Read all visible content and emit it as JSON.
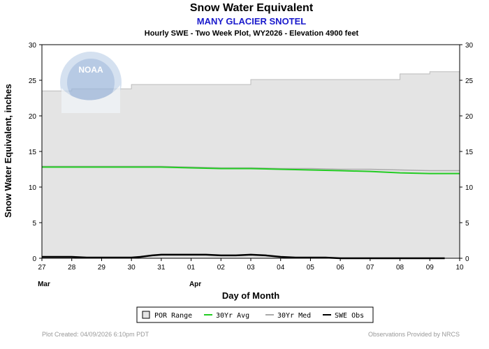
{
  "colors": {
    "por_fill": "#e4e4e4",
    "por_edge": "#bbbbbb",
    "avg": "#22cc22",
    "median": "#aaaaaa",
    "obs": "#000000",
    "subtitle": "#1a1acc"
  },
  "logo": {
    "text": "NOAA"
  },
  "chart_data": {
    "type": "line",
    "title": "Snow Water Equivalent",
    "subtitle": "MANY GLACIER SNOTEL",
    "subtitle2": "Hourly SWE - Two Week Plot, WY2026 -  Elevation 4900 feet",
    "xlabel": "Day of Month",
    "ylabel": "Snow Water Equivalent, inches",
    "ylim": [
      0,
      30
    ],
    "yticks": [
      0,
      5,
      10,
      15,
      20,
      25,
      30
    ],
    "xlim": [
      0,
      14
    ],
    "xtick_labels": [
      "27",
      "28",
      "29",
      "30",
      "31",
      "01",
      "02",
      "03",
      "04",
      "05",
      "06",
      "07",
      "08",
      "09",
      "10"
    ],
    "month_labels": [
      {
        "day": 0,
        "label": "Mar"
      },
      {
        "day": 5,
        "label": "Apr"
      }
    ],
    "series": [
      {
        "name": "POR Range",
        "kind": "area",
        "x": [
          0,
          1,
          1,
          3,
          3,
          7,
          7,
          12,
          12,
          13,
          13,
          14
        ],
        "upper": [
          23.5,
          23.5,
          23.8,
          23.8,
          24.4,
          24.4,
          25.1,
          25.1,
          25.9,
          25.9,
          26.2,
          26.2
        ],
        "lower": [
          0,
          0,
          0,
          0,
          0,
          0,
          0,
          0,
          0,
          0,
          0,
          0
        ]
      },
      {
        "name": "30Yr Avg",
        "kind": "line",
        "x": [
          0,
          2,
          4,
          5,
          6,
          7,
          8,
          9,
          10,
          11,
          12,
          13,
          14
        ],
        "values": [
          12.8,
          12.8,
          12.8,
          12.7,
          12.6,
          12.6,
          12.5,
          12.4,
          12.3,
          12.2,
          12.0,
          11.9,
          11.9
        ]
      },
      {
        "name": "30Yr Med",
        "kind": "line",
        "x": [
          0,
          2,
          4,
          5,
          6,
          7,
          8,
          9,
          10,
          11,
          12,
          13,
          14
        ],
        "values": [
          12.9,
          12.9,
          12.9,
          12.8,
          12.7,
          12.7,
          12.6,
          12.6,
          12.5,
          12.5,
          12.4,
          12.3,
          12.3
        ]
      },
      {
        "name": "SWE Obs",
        "kind": "line",
        "x": [
          0,
          0.5,
          1,
          1.5,
          2,
          2.5,
          3,
          3.3,
          3.7,
          4,
          4.5,
          5,
          5.5,
          6,
          6.5,
          7,
          7.5,
          8,
          8.5,
          9,
          9.5,
          10,
          11,
          12,
          13,
          13.5
        ],
        "values": [
          0.2,
          0.2,
          0.2,
          0.1,
          0.1,
          0.1,
          0.1,
          0.2,
          0.4,
          0.5,
          0.5,
          0.5,
          0.5,
          0.4,
          0.4,
          0.5,
          0.4,
          0.2,
          0.1,
          0.1,
          0.1,
          0.0,
          0.0,
          0.0,
          0.0,
          0.0
        ]
      }
    ],
    "legend": [
      {
        "label": "POR Range",
        "type": "box"
      },
      {
        "label": "30Yr Avg",
        "type": "line",
        "color": "#22cc22"
      },
      {
        "label": "30Yr Med",
        "type": "line",
        "color": "#aaaaaa"
      },
      {
        "label": "SWE Obs",
        "type": "line",
        "color": "#000000"
      }
    ]
  },
  "footer": {
    "created": "Plot Created: 04/09/2026 6:10pm PDT",
    "provided": "Observations Provided by NRCS"
  }
}
